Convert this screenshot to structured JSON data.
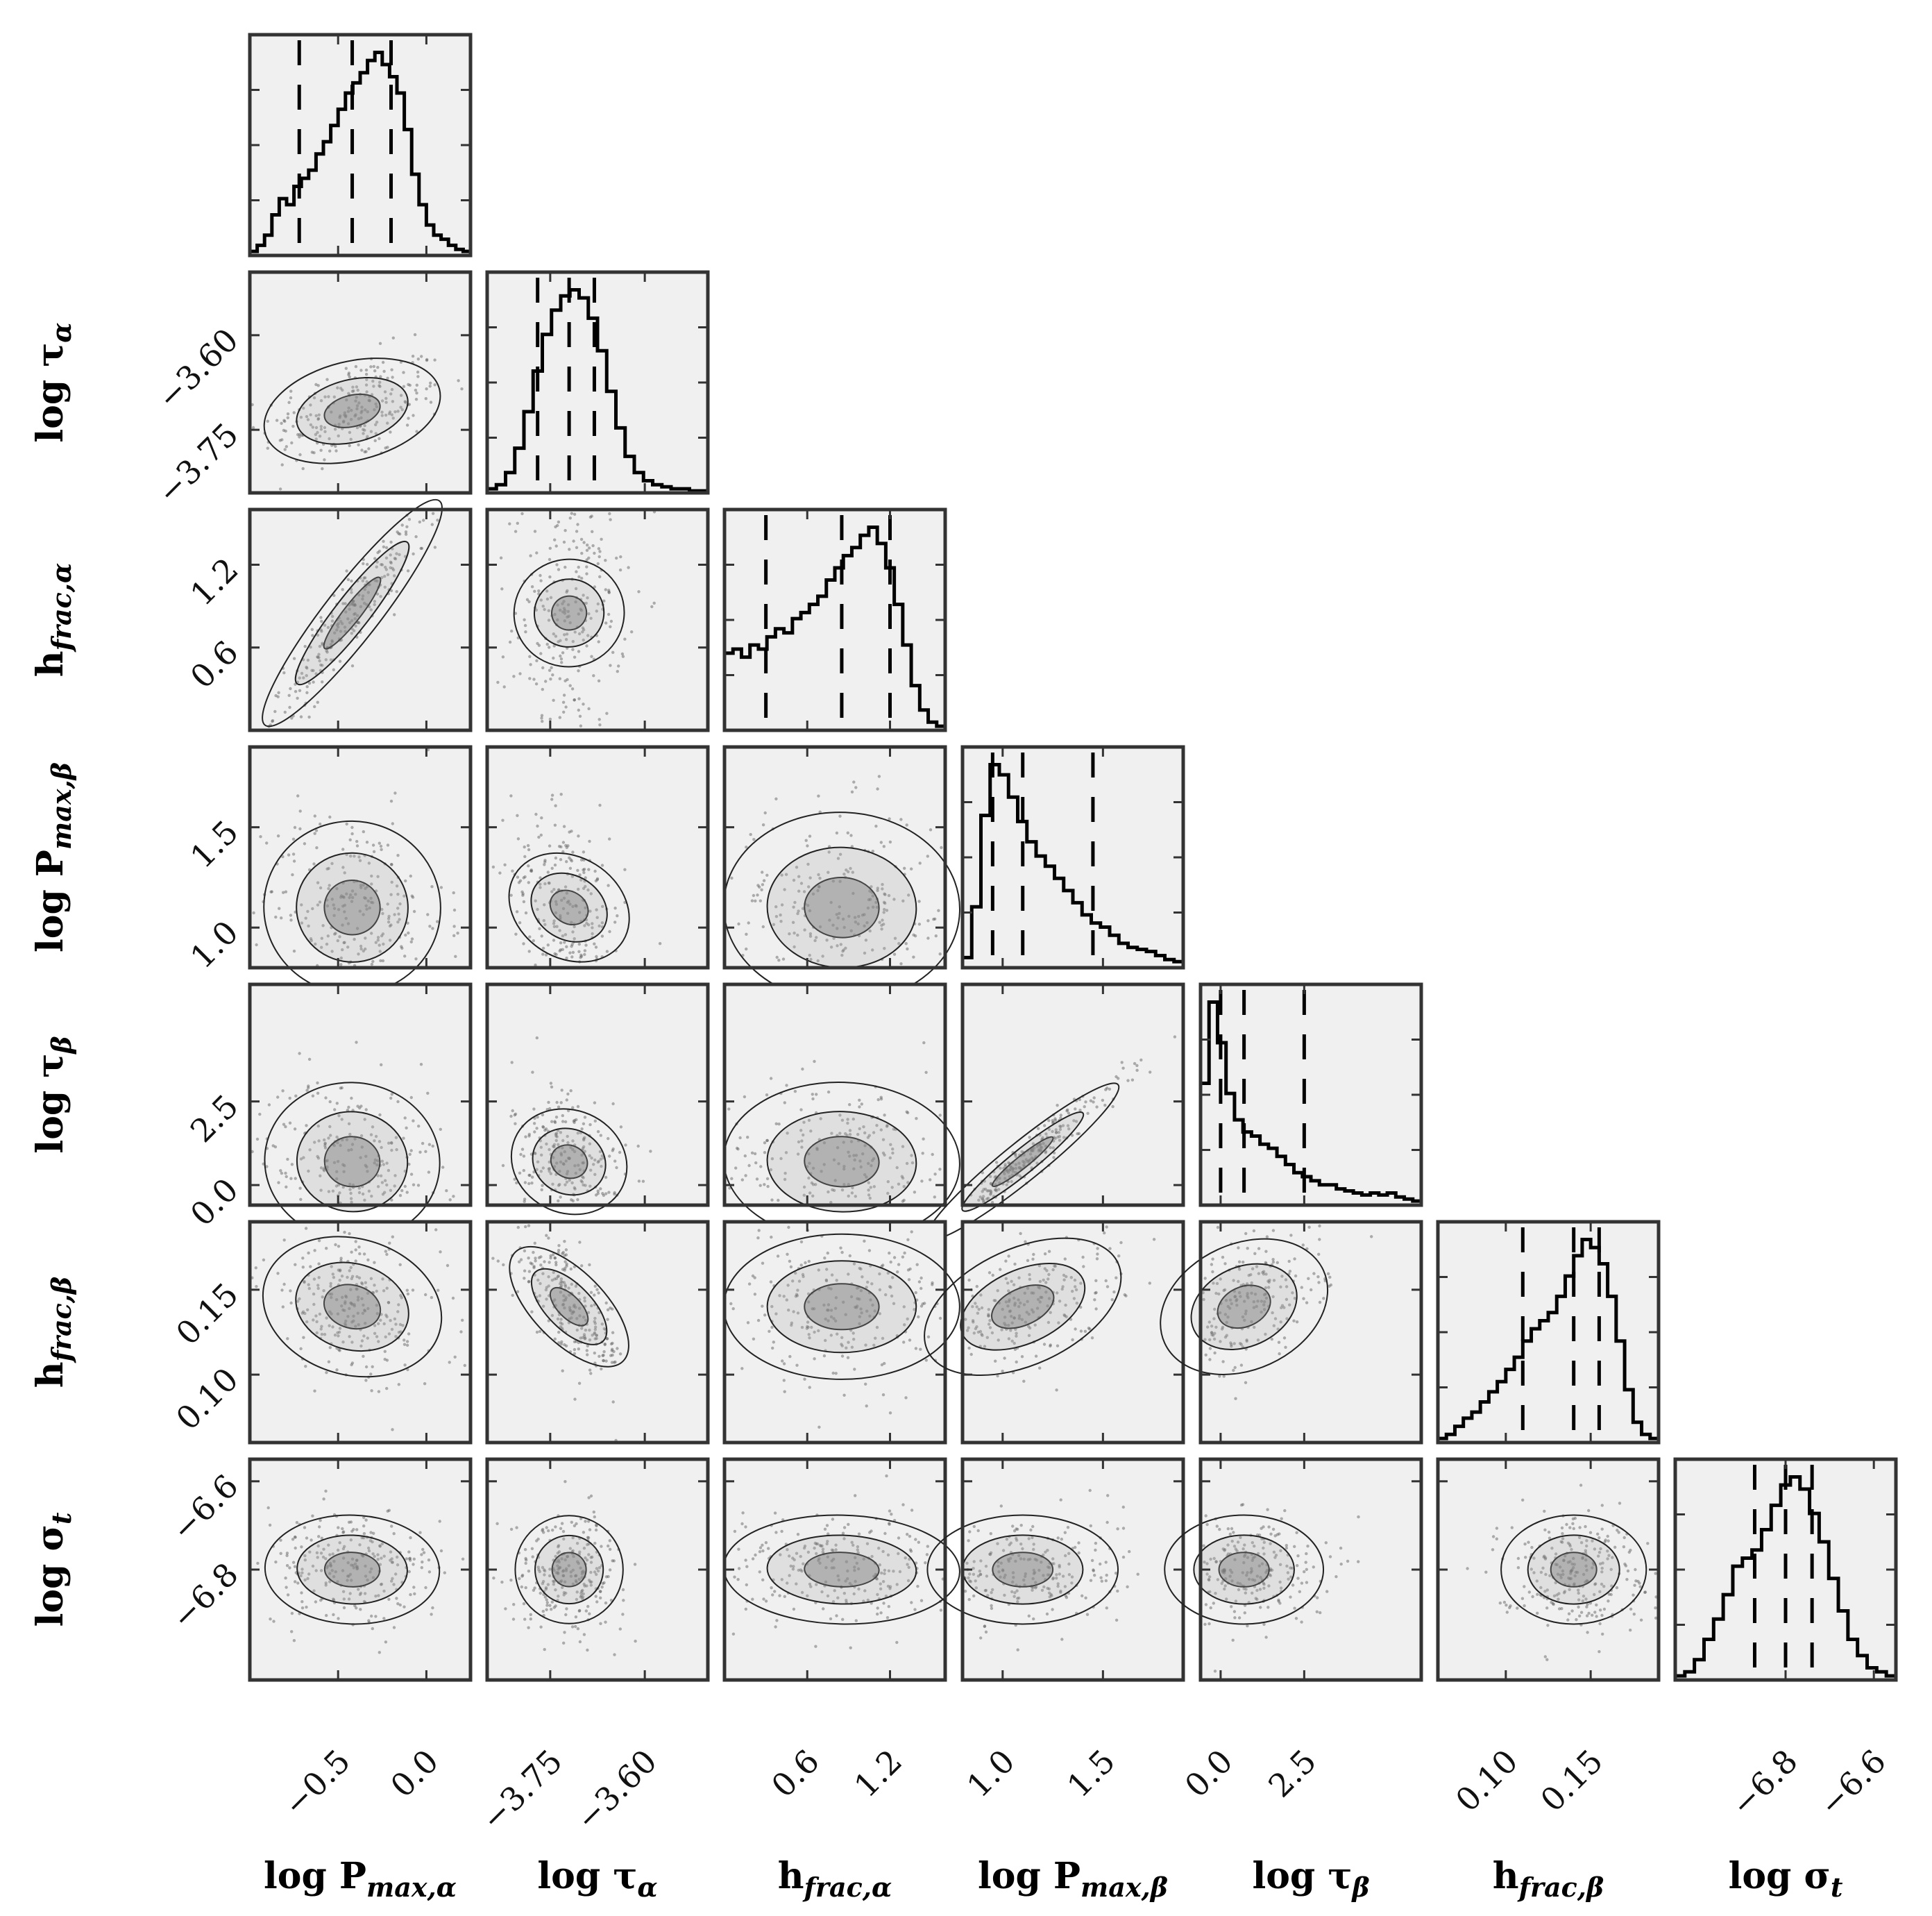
{
  "chart_data": {
    "type": "corner",
    "parameters": [
      {
        "key": "logPmax_a",
        "label": "log P",
        "sub": "max,α",
        "sub_style": "italic-sub",
        "range": [
          -1.0,
          0.25
        ],
        "ticks": [
          -0.5,
          0.0
        ],
        "tick_labels": [
          "−0.5",
          "0.0"
        ]
      },
      {
        "key": "logtau_a",
        "label": "log τ",
        "sub": "α",
        "range": [
          -3.85,
          -3.5
        ],
        "ticks": [
          -3.75,
          -3.6
        ],
        "tick_labels": [
          "−3.75",
          "−3.60"
        ]
      },
      {
        "key": "hfrac_a",
        "label": "h",
        "sub": "frac,α",
        "range": [
          0.0,
          1.6
        ],
        "ticks": [
          0.6,
          1.2
        ],
        "tick_labels": [
          "0.6",
          "1.2"
        ]
      },
      {
        "key": "logPmax_b",
        "label": "log P",
        "sub": "max,β",
        "range": [
          0.8,
          1.9
        ],
        "ticks": [
          1.0,
          1.5
        ],
        "tick_labels": [
          "1.0",
          "1.5"
        ]
      },
      {
        "key": "logtau_b",
        "label": "log τ",
        "sub": "β",
        "range": [
          -0.6,
          6.0
        ],
        "ticks": [
          0.0,
          2.5
        ],
        "tick_labels": [
          "0.0",
          "2.5"
        ]
      },
      {
        "key": "hfrac_b",
        "label": "h",
        "sub": "frac,β",
        "range": [
          0.06,
          0.19
        ],
        "ticks": [
          0.1,
          0.15
        ],
        "tick_labels": [
          "0.10",
          "0.15"
        ]
      },
      {
        "key": "logsigma_t",
        "label": "log σ",
        "sub": "t",
        "range": [
          -7.05,
          -6.55
        ],
        "ticks": [
          -6.8,
          -6.6
        ],
        "tick_labels": [
          "−6.8",
          "−6.6"
        ]
      }
    ],
    "quantiles": [
      [
        -0.72,
        -0.42,
        -0.2
      ],
      [
        -3.77,
        -3.72,
        -3.68
      ],
      [
        0.3,
        0.85,
        1.2
      ],
      [
        0.95,
        1.1,
        1.45
      ],
      [
        0.0,
        0.7,
        2.5
      ],
      [
        0.11,
        0.14,
        0.155
      ],
      [
        -6.87,
        -6.8,
        -6.74
      ]
    ],
    "histograms": [
      [
        0.02,
        0.05,
        0.1,
        0.2,
        0.28,
        0.25,
        0.34,
        0.38,
        0.42,
        0.5,
        0.56,
        0.64,
        0.72,
        0.8,
        0.85,
        0.9,
        0.96,
        1.0,
        0.94,
        0.88,
        0.8,
        0.62,
        0.4,
        0.25,
        0.15,
        0.1,
        0.08,
        0.05,
        0.03,
        0.02
      ],
      [
        0.02,
        0.04,
        0.1,
        0.22,
        0.4,
        0.6,
        0.78,
        0.9,
        0.97,
        1.0,
        0.96,
        0.86,
        0.7,
        0.5,
        0.32,
        0.18,
        0.1,
        0.06,
        0.04,
        0.03,
        0.02,
        0.02,
        0.01,
        0.01
      ],
      [
        0.38,
        0.4,
        0.36,
        0.42,
        0.4,
        0.46,
        0.5,
        0.48,
        0.55,
        0.58,
        0.62,
        0.66,
        0.74,
        0.8,
        0.86,
        0.9,
        0.96,
        1.0,
        0.92,
        0.8,
        0.62,
        0.42,
        0.22,
        0.1,
        0.04,
        0.02
      ],
      [
        0.05,
        0.3,
        0.75,
        1.0,
        0.95,
        0.84,
        0.72,
        0.62,
        0.55,
        0.5,
        0.44,
        0.38,
        0.32,
        0.26,
        0.22,
        0.2,
        0.16,
        0.12,
        0.1,
        0.09,
        0.08,
        0.06,
        0.04,
        0.03
      ],
      [
        0.6,
        1.0,
        0.8,
        0.55,
        0.42,
        0.36,
        0.34,
        0.3,
        0.28,
        0.24,
        0.2,
        0.16,
        0.14,
        0.12,
        0.1,
        0.1,
        0.08,
        0.07,
        0.06,
        0.05,
        0.06,
        0.05,
        0.06,
        0.04,
        0.03,
        0.02
      ],
      [
        0.02,
        0.04,
        0.08,
        0.12,
        0.15,
        0.2,
        0.25,
        0.3,
        0.36,
        0.42,
        0.5,
        0.56,
        0.6,
        0.64,
        0.72,
        0.82,
        0.92,
        1.0,
        0.96,
        0.88,
        0.72,
        0.5,
        0.26,
        0.1,
        0.04,
        0.02
      ],
      [
        0.02,
        0.04,
        0.1,
        0.2,
        0.3,
        0.42,
        0.56,
        0.6,
        0.64,
        0.74,
        0.86,
        0.96,
        1.0,
        0.94,
        0.82,
        0.68,
        0.5,
        0.34,
        0.2,
        0.12,
        0.06,
        0.04,
        0.02
      ]
    ],
    "correlations": [
      [
        1.0,
        0.4,
        0.95,
        -0.15,
        -0.1,
        -0.35,
        -0.05
      ],
      [
        0.4,
        1.0,
        0.1,
        -0.35,
        -0.3,
        -0.75,
        0.0
      ],
      [
        0.95,
        0.1,
        1.0,
        -0.05,
        -0.05,
        0.0,
        -0.05
      ],
      [
        -0.15,
        -0.35,
        -0.05,
        1.0,
        0.97,
        0.6,
        0.0
      ],
      [
        -0.1,
        -0.3,
        -0.05,
        0.97,
        1.0,
        0.5,
        0.0
      ],
      [
        -0.35,
        -0.75,
        0.0,
        0.6,
        0.5,
        1.0,
        0.0
      ],
      [
        -0.05,
        0.0,
        -0.05,
        0.0,
        0.0,
        0.0,
        1.0
      ]
    ],
    "colors": {
      "panel_bg": "#f0f0f0",
      "panel_border": "#333333",
      "line": "#000000",
      "points": "#555555"
    },
    "grid": false
  }
}
